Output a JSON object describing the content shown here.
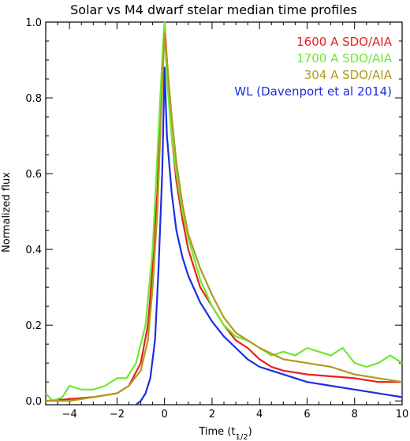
{
  "chart_data": {
    "type": "line",
    "title": "Solar vs  M4 dwarf stelar median time profiles",
    "xlabel": "Time (t",
    "xlabel_sub": "1/2",
    "xlabel_end": ")",
    "ylabel": "Normalized flux",
    "xlim": [
      -5,
      10
    ],
    "ylim": [
      -0.01,
      1.0
    ],
    "x_ticks": [
      -4,
      -2,
      0,
      2,
      4,
      6,
      8,
      10
    ],
    "y_ticks": [
      0.0,
      0.2,
      0.4,
      0.6,
      0.8,
      1.0
    ],
    "x_tick_labels": [
      "−4",
      "−2",
      "0",
      "2",
      "4",
      "6",
      "8",
      "10"
    ],
    "y_tick_labels": [
      "0.0",
      "0.2",
      "0.4",
      "0.6",
      "0.8",
      "1.0"
    ],
    "grid": false,
    "legend_position": "top-right",
    "series": [
      {
        "name": "1600 A SDO/AIA",
        "color": "#e8201a",
        "points": [
          [
            -5,
            0.0
          ],
          [
            -4,
            0.005
          ],
          [
            -3,
            0.01
          ],
          [
            -2,
            0.02
          ],
          [
            -1.5,
            0.04
          ],
          [
            -1,
            0.1
          ],
          [
            -0.7,
            0.2
          ],
          [
            -0.5,
            0.35
          ],
          [
            -0.3,
            0.55
          ],
          [
            -0.15,
            0.8
          ],
          [
            0,
            1.0
          ],
          [
            0.15,
            0.85
          ],
          [
            0.3,
            0.7
          ],
          [
            0.5,
            0.58
          ],
          [
            0.75,
            0.48
          ],
          [
            1,
            0.4
          ],
          [
            1.5,
            0.3
          ],
          [
            2,
            0.25
          ],
          [
            2.5,
            0.2
          ],
          [
            3,
            0.16
          ],
          [
            3.5,
            0.14
          ],
          [
            4,
            0.11
          ],
          [
            4.5,
            0.09
          ],
          [
            5,
            0.08
          ],
          [
            6,
            0.07
          ],
          [
            7,
            0.065
          ],
          [
            8,
            0.06
          ],
          [
            9,
            0.05
          ],
          [
            10,
            0.05
          ]
        ]
      },
      {
        "name": "1700 A SDO/AIA",
        "color": "#6ee830",
        "points": [
          [
            -5,
            0.02
          ],
          [
            -4.7,
            0.0
          ],
          [
            -4.3,
            0.01
          ],
          [
            -4,
            0.04
          ],
          [
            -3.5,
            0.03
          ],
          [
            -3,
            0.03
          ],
          [
            -2.5,
            0.04
          ],
          [
            -2,
            0.06
          ],
          [
            -1.6,
            0.06
          ],
          [
            -1.2,
            0.1
          ],
          [
            -0.8,
            0.2
          ],
          [
            -0.5,
            0.4
          ],
          [
            -0.3,
            0.65
          ],
          [
            -0.1,
            0.9
          ],
          [
            0,
            1.0
          ],
          [
            0.1,
            0.85
          ],
          [
            0.3,
            0.7
          ],
          [
            0.5,
            0.6
          ],
          [
            0.75,
            0.5
          ],
          [
            1,
            0.43
          ],
          [
            1.5,
            0.32
          ],
          [
            2,
            0.25
          ],
          [
            2.5,
            0.2
          ],
          [
            3,
            0.17
          ],
          [
            3.5,
            0.16
          ],
          [
            4,
            0.14
          ],
          [
            4.5,
            0.12
          ],
          [
            5,
            0.13
          ],
          [
            5.5,
            0.12
          ],
          [
            6,
            0.14
          ],
          [
            6.5,
            0.13
          ],
          [
            7,
            0.12
          ],
          [
            7.5,
            0.14
          ],
          [
            8,
            0.1
          ],
          [
            8.5,
            0.09
          ],
          [
            9,
            0.1
          ],
          [
            9.5,
            0.12
          ],
          [
            10,
            0.1
          ]
        ]
      },
      {
        "name": "304 A SDO/AIA",
        "color": "#b09a20",
        "points": [
          [
            -5,
            0.0
          ],
          [
            -4,
            0.0
          ],
          [
            -3,
            0.01
          ],
          [
            -2,
            0.02
          ],
          [
            -1.5,
            0.04
          ],
          [
            -1,
            0.08
          ],
          [
            -0.7,
            0.16
          ],
          [
            -0.5,
            0.3
          ],
          [
            -0.3,
            0.5
          ],
          [
            -0.15,
            0.75
          ],
          [
            0,
            0.97
          ],
          [
            0.1,
            0.9
          ],
          [
            0.3,
            0.75
          ],
          [
            0.5,
            0.63
          ],
          [
            0.75,
            0.52
          ],
          [
            1,
            0.44
          ],
          [
            1.5,
            0.35
          ],
          [
            2,
            0.28
          ],
          [
            2.5,
            0.22
          ],
          [
            3,
            0.18
          ],
          [
            3.5,
            0.16
          ],
          [
            4,
            0.14
          ],
          [
            5,
            0.11
          ],
          [
            6,
            0.1
          ],
          [
            7,
            0.09
          ],
          [
            8,
            0.07
          ],
          [
            9,
            0.06
          ],
          [
            10,
            0.05
          ]
        ]
      },
      {
        "name": "WL (Davenport et al 2014)",
        "color": "#1a2ee0",
        "points": [
          [
            -1.2,
            -0.01
          ],
          [
            -1,
            0.0
          ],
          [
            -0.8,
            0.02
          ],
          [
            -0.6,
            0.06
          ],
          [
            -0.4,
            0.16
          ],
          [
            -0.25,
            0.35
          ],
          [
            -0.1,
            0.6
          ],
          [
            0,
            0.88
          ],
          [
            0.1,
            0.7
          ],
          [
            0.3,
            0.55
          ],
          [
            0.5,
            0.45
          ],
          [
            0.75,
            0.38
          ],
          [
            1,
            0.33
          ],
          [
            1.5,
            0.26
          ],
          [
            2,
            0.21
          ],
          [
            2.5,
            0.17
          ],
          [
            3,
            0.14
          ],
          [
            3.5,
            0.11
          ],
          [
            4,
            0.09
          ],
          [
            5,
            0.07
          ],
          [
            6,
            0.05
          ],
          [
            7,
            0.04
          ],
          [
            8,
            0.03
          ],
          [
            9,
            0.02
          ],
          [
            10,
            0.01
          ]
        ]
      }
    ]
  }
}
